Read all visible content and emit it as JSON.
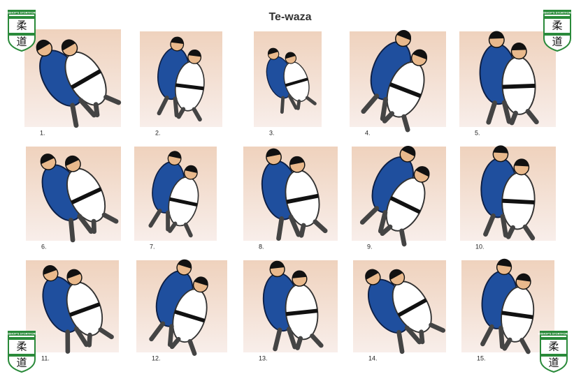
{
  "header": {
    "title": "Te-waza"
  },
  "logo": {
    "text": "BISHOP'S STORTFORD",
    "kanji": [
      "柔",
      "道"
    ]
  },
  "items": [
    "1.",
    "2.",
    "3.",
    "4.",
    "5.",
    "6.",
    "7.",
    "8.",
    "9.",
    "10.",
    "11.",
    "12.",
    "13.",
    "14.",
    "15."
  ]
}
